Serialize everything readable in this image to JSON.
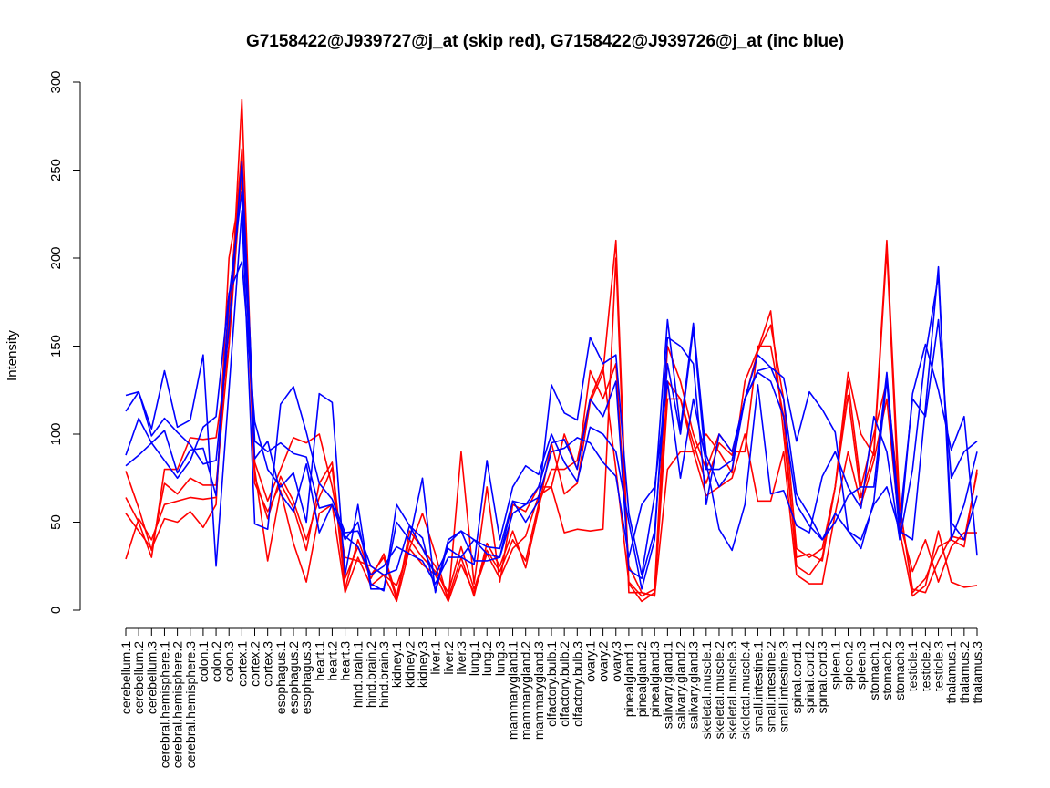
{
  "chart_data": {
    "type": "line",
    "title": "G7158422@J939727@j_at (skip red), G7158422@J939726@j_at (inc blue)",
    "ylabel": "Intensity",
    "xlabel": "",
    "ylim": [
      0,
      300
    ],
    "yticks": [
      0,
      50,
      100,
      150,
      200,
      250,
      300
    ],
    "grid": false,
    "categories": [
      "cerebellum.1",
      "cerebellum.2",
      "cerebellum.3",
      "cerebral.hemisphere.1",
      "cerebral.hemisphere.2",
      "cerebral.hemisphere.3",
      "colon.1",
      "colon.2",
      "colon.3",
      "cortex.1",
      "cortex.2",
      "cortex.3",
      "esophagus.1",
      "esophagus.2",
      "esophagus.3",
      "heart.1",
      "heart.2",
      "heart.3",
      "hind.brain.1",
      "hind.brain.2",
      "hind.brain.3",
      "kidney.1",
      "kidney.2",
      "kidney.3",
      "liver.1",
      "liver.2",
      "liver.3",
      "lung.1",
      "lung.2",
      "lung.3",
      "mammarygland.1",
      "mammarygland.2",
      "mammarygland.3",
      "olfactory.bulb.1",
      "olfactory.bulb.2",
      "olfactory.bulb.3",
      "ovary.1",
      "ovary.2",
      "ovary.3",
      "pinealgland.1",
      "pinealgland.2",
      "pinealgland.3",
      "salivary.gland.1",
      "salivary.gland.2",
      "salivary.gland.3",
      "skeletal.muscle.1",
      "skeletal.muscle.2",
      "skeletal.muscle.3",
      "skeletal.muscle.4",
      "small.intestine.1",
      "small.intestine.2",
      "small.intestine.3",
      "spinal.cord.1",
      "spinal.cord.2",
      "spinal.cord.3",
      "spleen.1",
      "spleen.2",
      "spleen.3",
      "stomach.1",
      "stomach.2",
      "stomach.3",
      "testicle.1",
      "testicle.2",
      "testicle.3",
      "thalamus.1",
      "thalamus.2",
      "thalamus.3"
    ],
    "series_colors": {
      "skip": "#ff0000",
      "inc": "#0000ff"
    },
    "series": [
      {
        "group": "skip",
        "values": [
          79,
          58,
          34,
          72,
          66,
          75,
          71,
          71,
          150,
          290,
          76,
          52,
          76,
          62,
          40,
          64,
          81,
          12,
          40,
          20,
          30,
          6,
          45,
          35,
          25,
          7,
          30,
          8,
          38,
          25,
          45,
          24,
          57,
          95,
          66,
          72,
          118,
          135,
          210,
          15,
          5,
          10,
          130,
          120,
          95,
          72,
          95,
          88,
          120,
          147,
          162,
          120,
          35,
          30,
          35,
          70,
          122,
          64,
          90,
          210,
          60,
          12,
          10,
          28,
          42,
          40,
          78
        ]
      },
      {
        "group": "skip",
        "values": [
          64,
          50,
          30,
          80,
          80,
          98,
          97,
          98,
          150,
          250,
          72,
          56,
          72,
          58,
          34,
          72,
          84,
          18,
          36,
          18,
          32,
          8,
          40,
          30,
          22,
          10,
          36,
          12,
          34,
          22,
          40,
          28,
          60,
          80,
          80,
          85,
          120,
          138,
          80,
          16,
          8,
          12,
          150,
          130,
          100,
          80,
          100,
          90,
          90,
          150,
          150,
          110,
          25,
          20,
          30,
          70,
          130,
          70,
          100,
          130,
          60,
          10,
          18,
          36,
          40,
          36,
          80
        ]
      },
      {
        "group": "skip",
        "values": [
          55,
          45,
          35,
          52,
          50,
          56,
          47,
          60,
          200,
          243,
          80,
          28,
          68,
          38,
          16,
          55,
          60,
          10,
          30,
          14,
          20,
          5,
          35,
          26,
          20,
          5,
          26,
          10,
          32,
          18,
          35,
          42,
          65,
          70,
          44,
          46,
          45,
          46,
          200,
          10,
          10,
          8,
          80,
          90,
          90,
          65,
          70,
          75,
          100,
          62,
          62,
          90,
          20,
          15,
          15,
          55,
          90,
          60,
          85,
          120,
          45,
          8,
          14,
          45,
          16,
          13,
          14
        ]
      },
      {
        "group": "skip",
        "values": [
          29,
          52,
          40,
          60,
          62,
          64,
          63,
          64,
          170,
          262,
          84,
          62,
          80,
          98,
          95,
          100,
          70,
          30,
          28,
          25,
          20,
          14,
          35,
          55,
          32,
          5,
          90,
          15,
          70,
          16,
          60,
          56,
          70,
          70,
          100,
          80,
          136,
          120,
          140,
          25,
          10,
          8,
          120,
          120,
          90,
          100,
          90,
          78,
          130,
          148,
          170,
          100,
          30,
          32,
          28,
          70,
          135,
          100,
          88,
          205,
          50,
          22,
          40,
          16,
          36,
          44,
          44
        ]
      },
      {
        "group": "inc",
        "values": [
          122,
          124,
          99,
          109,
          101,
          94,
          83,
          85,
          160,
          255,
          96,
          90,
          95,
          89,
          87,
          58,
          60,
          42,
          36,
          20,
          25,
          36,
          32,
          28,
          15,
          30,
          30,
          40,
          32,
          30,
          55,
          60,
          70,
          95,
          97,
          80,
          120,
          110,
          130,
          23,
          18,
          45,
          140,
          100,
          160,
          80,
          80,
          85,
          120,
          135,
          130,
          110,
          60,
          48,
          40,
          55,
          45,
          40,
          60,
          70,
          45,
          40,
          115,
          195,
          40,
          60,
          90
        ]
      },
      {
        "group": "inc",
        "values": [
          113,
          124,
          103,
          136,
          104,
          108,
          145,
          25,
          125,
          227,
          49,
          46,
          117,
          127,
          101,
          72,
          63,
          44,
          45,
          25,
          20,
          23,
          48,
          41,
          11,
          40,
          45,
          28,
          28,
          30,
          62,
          50,
          62,
          128,
          112,
          108,
          155,
          140,
          145,
          55,
          20,
          65,
          165,
          103,
          163,
          88,
          70,
          80,
          120,
          145,
          138,
          132,
          96,
          124,
          114,
          101,
          45,
          35,
          62,
          131,
          41,
          123,
          151,
          125,
          91,
          110,
          31
        ]
      },
      {
        "group": "inc",
        "values": [
          88,
          109,
          95,
          102,
          78,
          91,
          92,
          65,
          178,
          238,
          86,
          96,
          66,
          56,
          83,
          44,
          60,
          40,
          50,
          15,
          11,
          60,
          48,
          35,
          20,
          35,
          30,
          26,
          85,
          40,
          70,
          82,
          77,
          100,
          84,
          73,
          104,
          100,
          90,
          50,
          12,
          40,
          155,
          150,
          140,
          60,
          100,
          90,
          120,
          136,
          138,
          120,
          66,
          54,
          40,
          50,
          65,
          70,
          70,
          135,
          50,
          120,
          110,
          165,
          75,
          90,
          96
        ]
      },
      {
        "group": "inc",
        "values": [
          82,
          88,
          95,
          85,
          75,
          85,
          104,
          110,
          180,
          198,
          107,
          80,
          70,
          78,
          50,
          123,
          118,
          20,
          60,
          12,
          12,
          50,
          40,
          75,
          10,
          38,
          45,
          40,
          36,
          35,
          62,
          60,
          64,
          90,
          92,
          98,
          95,
          84,
          76,
          30,
          60,
          70,
          130,
          75,
          120,
          84,
          46,
          34,
          60,
          128,
          66,
          68,
          48,
          44,
          76,
          90,
          70,
          58,
          110,
          90,
          40,
          80,
          145,
          190,
          50,
          40,
          65
        ]
      }
    ]
  }
}
